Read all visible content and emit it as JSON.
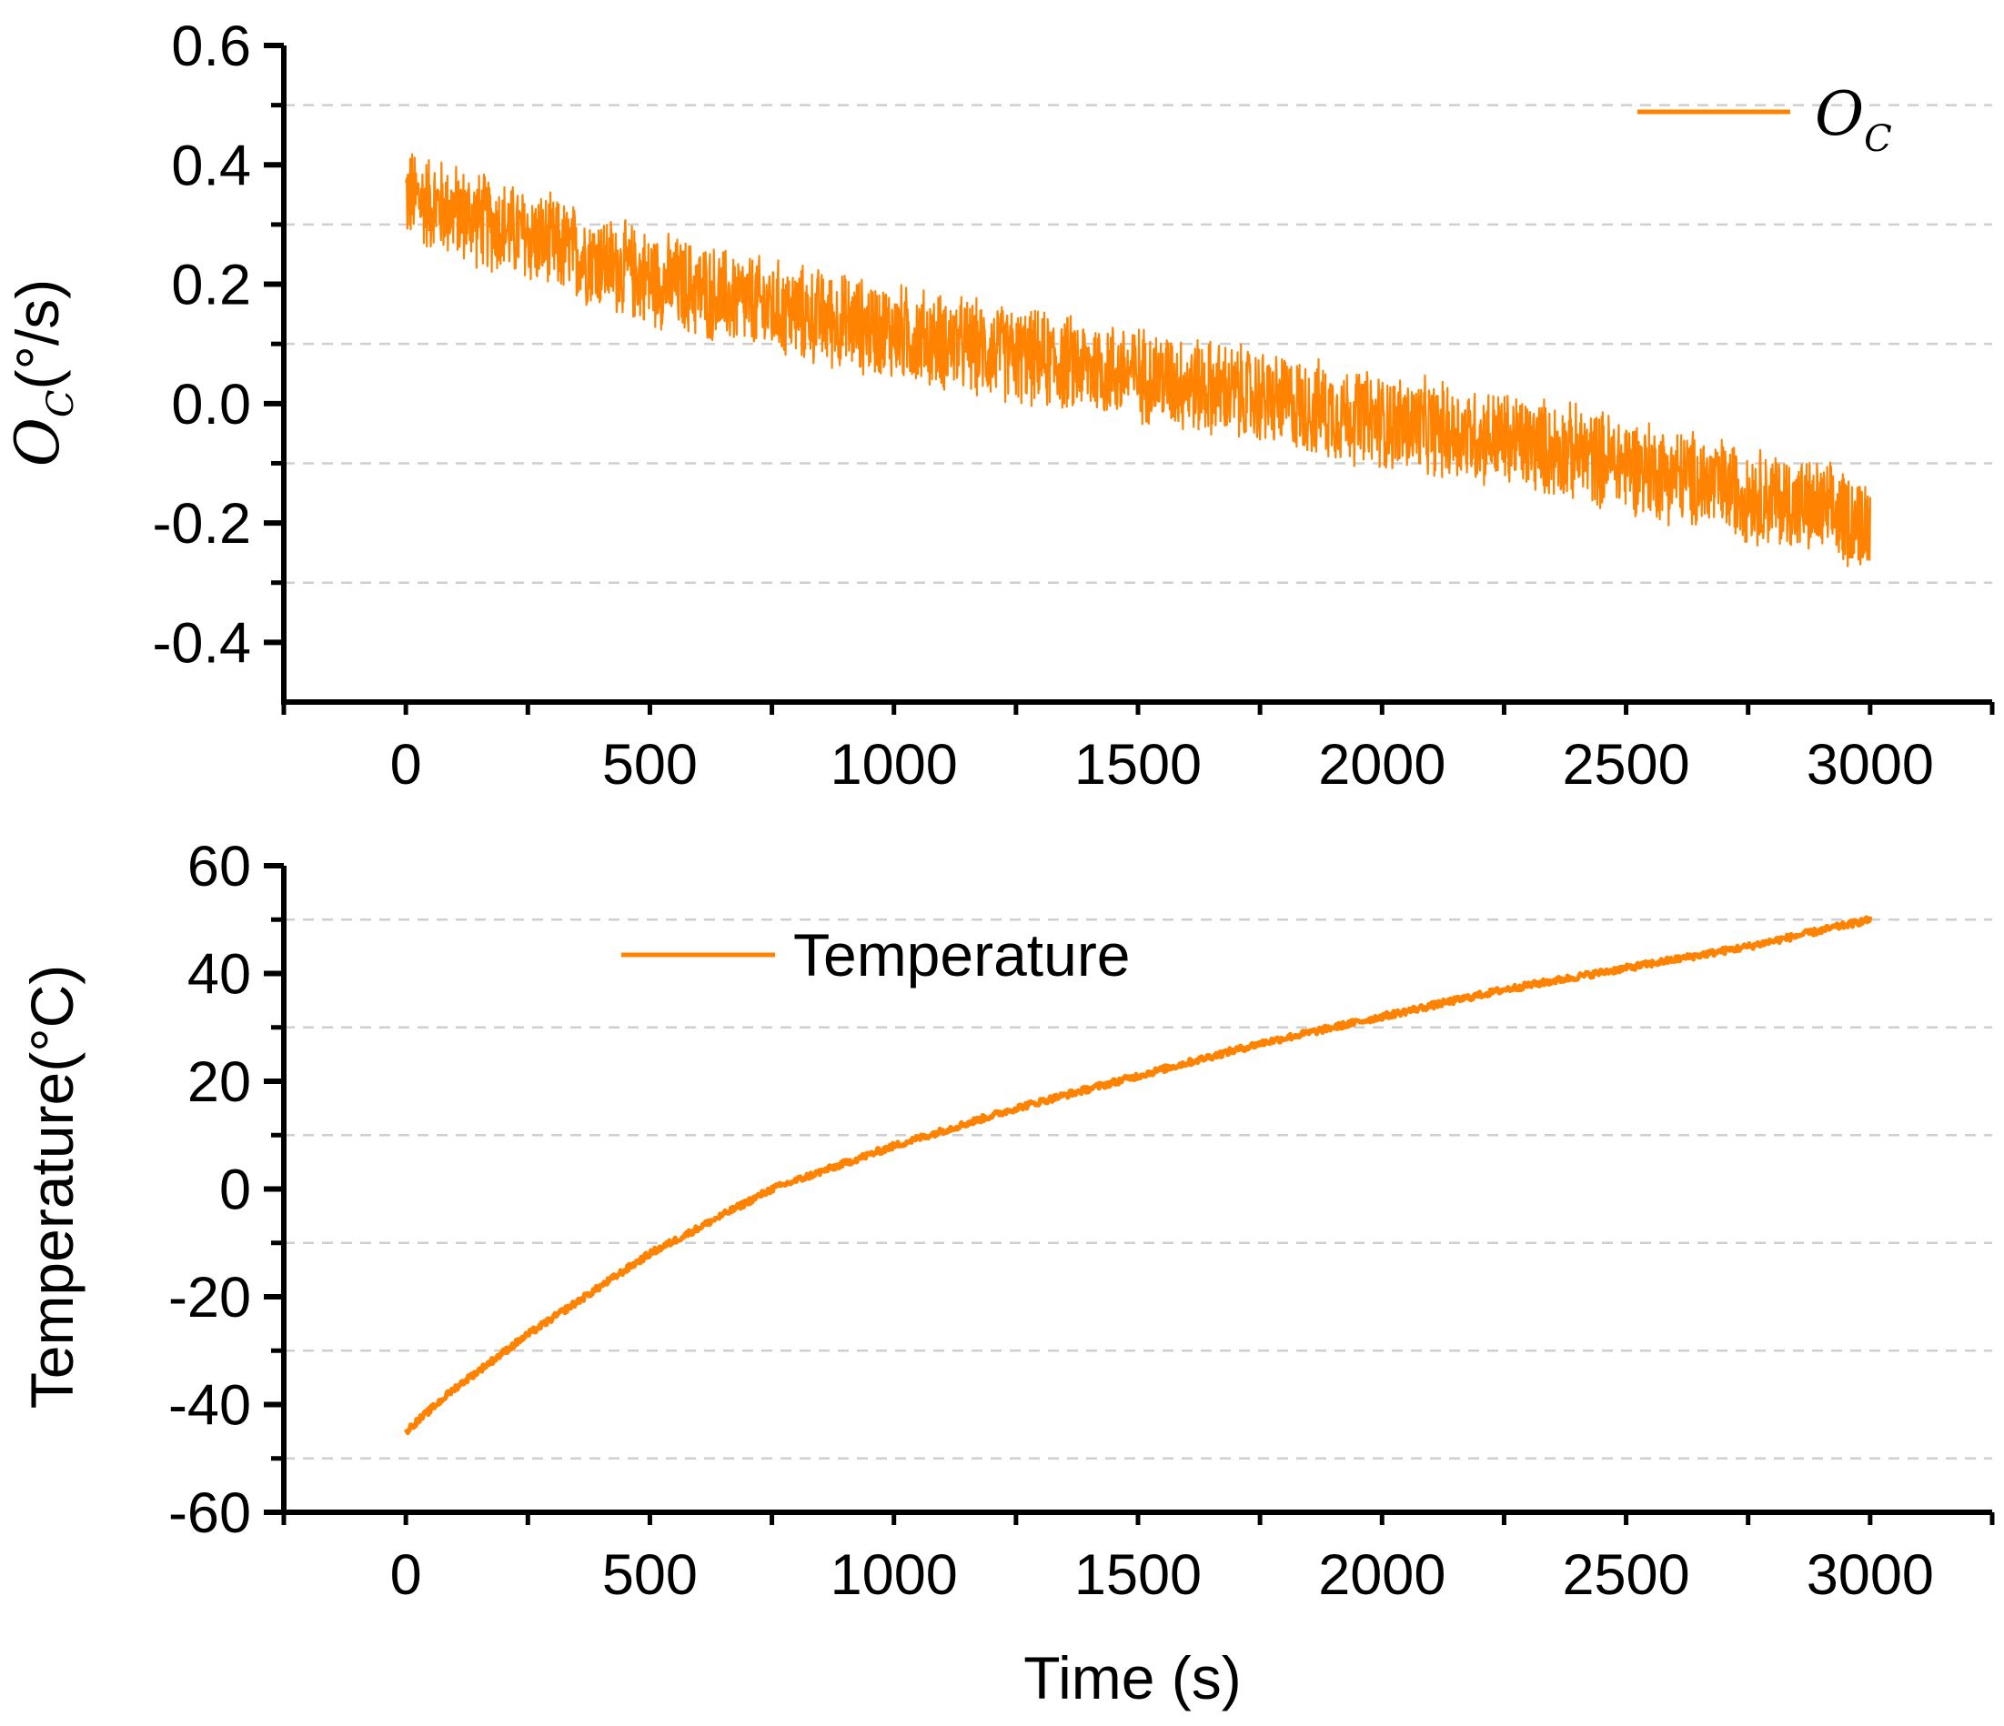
{
  "colors": {
    "series": "#FF8300",
    "grid": "#cfcfcf",
    "axis": "#000000",
    "background": "#ffffff"
  },
  "chart_data": [
    {
      "id": "top",
      "type": "line",
      "title": "",
      "xlabel": "",
      "ylabel": {
        "symbol": "O",
        "subscript": "C",
        "unit": "(°/s)"
      },
      "xlim": [
        -250,
        3250
      ],
      "ylim": [
        -0.5,
        0.6
      ],
      "xticks": [
        0,
        500,
        1000,
        1500,
        2000,
        2500,
        3000
      ],
      "xtick_labels": [
        "0",
        "500",
        "1000",
        "1500",
        "2000",
        "2500",
        "3000"
      ],
      "yticks": [
        -0.4,
        -0.2,
        0.0,
        0.2,
        0.4,
        0.6
      ],
      "ytick_labels": [
        "-0.4",
        "-0.2",
        "0.0",
        "0.2",
        "0.4",
        "0.6"
      ],
      "gridlines_y": [
        -0.3,
        -0.1,
        0.1,
        0.3,
        0.5
      ],
      "grid": "dashed horizontal",
      "legend": {
        "position": "top-right",
        "symbol": "O",
        "subscript": "C"
      },
      "series": [
        {
          "name": "O_C",
          "noise_amplitude": 0.09,
          "x": [
            0,
            250,
            500,
            750,
            1000,
            1250,
            1500,
            1750,
            2000,
            2250,
            2500,
            2750,
            3000
          ],
          "y": [
            0.35,
            0.28,
            0.21,
            0.16,
            0.12,
            0.08,
            0.05,
            0.01,
            -0.03,
            -0.06,
            -0.1,
            -0.15,
            -0.2
          ]
        }
      ]
    },
    {
      "id": "bottom",
      "type": "line",
      "title": "",
      "xlabel": "Time (s)",
      "ylabel": "Temperature(°C)",
      "xlim": [
        -250,
        3250
      ],
      "ylim": [
        -60,
        60
      ],
      "xticks": [
        0,
        500,
        1000,
        1500,
        2000,
        2500,
        3000
      ],
      "xtick_labels": [
        "0",
        "500",
        "1000",
        "1500",
        "2000",
        "2500",
        "3000"
      ],
      "yticks": [
        -60,
        -40,
        -20,
        0,
        20,
        40,
        60
      ],
      "ytick_labels": [
        "-60",
        "-40",
        "-20",
        "0",
        "20",
        "40",
        "60"
      ],
      "gridlines_y": [
        -50,
        -30,
        -10,
        10,
        30,
        50
      ],
      "grid": "dashed horizontal",
      "legend": {
        "position": "top-left",
        "label": "Temperature"
      },
      "series": [
        {
          "name": "Temperature",
          "noise_amplitude": 0.6,
          "x": [
            0,
            100,
            250,
            500,
            750,
            1000,
            1250,
            1500,
            1750,
            2000,
            2250,
            2500,
            2750,
            3000
          ],
          "y": [
            -45,
            -37,
            -27,
            -12,
            0,
            8,
            15,
            21,
            27,
            32,
            37,
            41,
            45,
            50
          ]
        }
      ]
    }
  ]
}
